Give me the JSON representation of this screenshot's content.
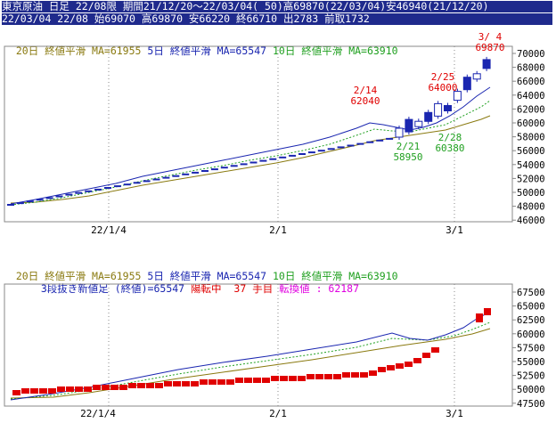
{
  "header": {
    "line1": "東京原油 日足 22/08限 期間21/12/20～22/03/04( 50)高69870(22/03/04)安46940(21/12/20)",
    "line2": "22/03/04 22/08 始69070 高69870 安66220 終66710 出2783 前取1732"
  },
  "upper": {
    "legend": {
      "ma20": "20日 終値平滑 MA=61955",
      "ma5": "5日 終値平滑 MA=65547",
      "ma10": "10日 終値平滑 MA=63910"
    },
    "y_ticks": [
      "70000",
      "68000",
      "66000",
      "64000",
      "62000",
      "60000",
      "58000",
      "56000",
      "54000",
      "52000",
      "50000",
      "48000",
      "46000"
    ],
    "x_ticks": [
      "22/1/4",
      "2/1",
      "3/1"
    ],
    "annotations": [
      {
        "date": "2/14",
        "value": "62040"
      },
      {
        "date": "2/21",
        "value": "58950"
      },
      {
        "date": "2/25",
        "value": "64000"
      },
      {
        "date": "2/28",
        "value": "60380"
      },
      {
        "date": "3/ 4",
        "value": "69870"
      }
    ]
  },
  "lower": {
    "legend": {
      "ma20": "20日 終値平滑 MA=61955",
      "ma5": "5日 終値平滑 MA=65547",
      "ma10": "10日 終値平滑 MA=63910"
    },
    "info": {
      "label": "3段抜き新値足 (終値)=65547",
      "status": "陽転中",
      "count": "37",
      "unit": "手目",
      "switch": "転換値 : 62187"
    },
    "y_ticks": [
      "67500",
      "65000",
      "62500",
      "60000",
      "57500",
      "55000",
      "52500",
      "50000",
      "47500"
    ],
    "x_ticks": [
      "22/1/4",
      "2/1",
      "3/1"
    ]
  },
  "colors": {
    "header_bg": "#1f2a8c",
    "ma20": "#8a7a10",
    "ma5": "#1a26b0",
    "ma10": "#20a020",
    "up": "#e00000",
    "down": "#1a26b0"
  }
}
